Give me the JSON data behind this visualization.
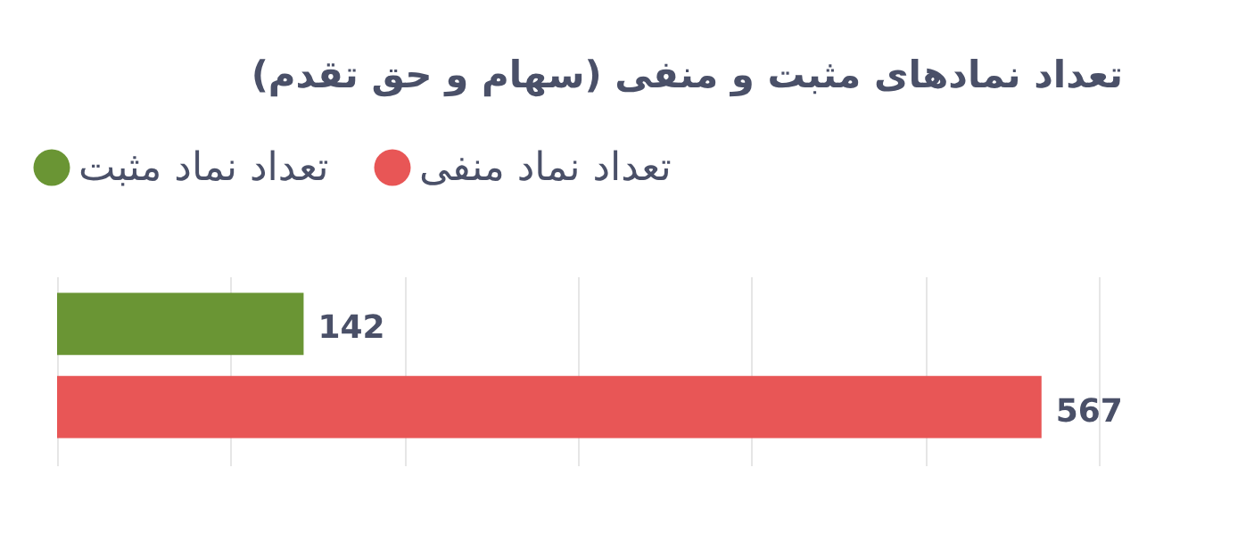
{
  "chart_data": {
    "type": "bar",
    "orientation": "horizontal",
    "title": "تعداد نمادهای مثبت و منفی (سهام و حق تقدم)",
    "categories": [
      null
    ],
    "series": [
      {
        "name": "تعداد نماد مثبت",
        "color": "#6a9534",
        "values": [
          142
        ]
      },
      {
        "name": "تعداد نماد منفی",
        "color": "#e85656",
        "values": [
          567
        ]
      }
    ],
    "xlim": [
      0,
      600
    ],
    "xticks": [
      0,
      100,
      200,
      300,
      400,
      500,
      600
    ],
    "tick_labels": false,
    "grid": "x",
    "legend": "top left",
    "data_labels": true
  }
}
